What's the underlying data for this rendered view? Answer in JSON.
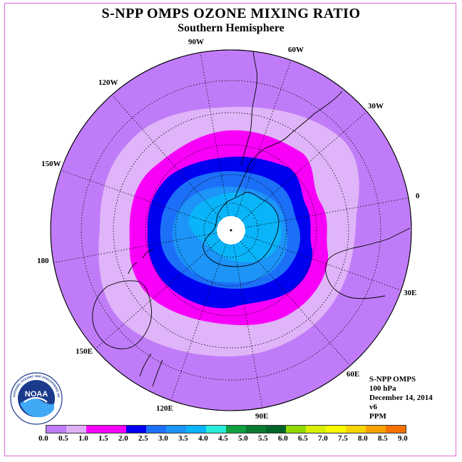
{
  "title": "S-NPP OMPS OZONE MIXING RATIO",
  "subtitle": "Southern Hemisphere",
  "longitude_labels": [
    "90W",
    "60W",
    "30W",
    "0",
    "30E",
    "60E",
    "90E",
    "120E",
    "150E",
    "180",
    "150W",
    "120W"
  ],
  "info": {
    "instrument": "S-NPP OMPS",
    "level": "100 hPa",
    "date": "December 14, 2014",
    "version": "v6",
    "units": "PPM"
  },
  "logo": {
    "name": "NOAA",
    "ring_text": "NATIONAL OCEANIC AND ATMOSPHERIC ADMINISTRATION · U.S. DEPARTMENT OF COMMERCE"
  },
  "colorbar": {
    "colors": [
      "#c07cf8",
      "#dfb0f8",
      "#f800f8",
      "#f800f8",
      "#0000f0",
      "#1c70f8",
      "#1c94f8",
      "#0ab4f8",
      "#28ecd8",
      "#10a040",
      "#0a7a30",
      "#006428",
      "#90d800",
      "#d8f000",
      "#f8f800",
      "#f8d400",
      "#f8a000",
      "#f87000",
      "#f81000",
      "#8a5a38"
    ],
    "tick_labels": [
      "0.0",
      "0.5",
      "1.0",
      "1.5",
      "2.0",
      "2.5",
      "3.0",
      "3.5",
      "4.0",
      "4.5",
      "5.0",
      "5.5",
      "6.0",
      "6.5",
      "7.0",
      "7.5",
      "8.0",
      "8.5",
      "9.0"
    ]
  },
  "colors": {
    "level_0_to_0_5": "#c07cf8",
    "level_0_5_to_1_0": "#e0b4f8",
    "level_1_0_to_1_5": "#f800f8",
    "level_1_5_to_2_0": "#0000f0",
    "level_2_0_to_2_5": "#1c70f8",
    "level_2_5_to_3_0": "#1c94f8",
    "level_3_0_to_3_5": "#0ab4f8"
  }
}
